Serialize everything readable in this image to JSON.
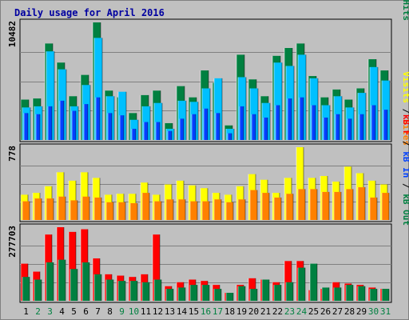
{
  "chart_data": {
    "type": "bar",
    "title": "Daily usage for April 2016",
    "colors": {
      "background": "#C0C0C0",
      "border": "#808080",
      "title": "#0000A0",
      "hits": "#008040",
      "files": "#00C0FF",
      "pages": "#0040FF",
      "visits": "#FFFF00",
      "sites": "#FF8000",
      "kb_in": "#008040",
      "kb_out": "#0040FF",
      "kb_f": "#FF0000",
      "weekday_label": "#000000",
      "weekend_label": "#008040"
    },
    "days": [
      "1",
      "2",
      "3",
      "4",
      "5",
      "6",
      "7",
      "8",
      "9",
      "10",
      "11",
      "12",
      "13",
      "14",
      "15",
      "16",
      "17",
      "18",
      "19",
      "20",
      "21",
      "22",
      "23",
      "24",
      "25",
      "26",
      "27",
      "28",
      "29",
      "30",
      "31"
    ],
    "weekend_days": [
      "2",
      "3",
      "9",
      "10",
      "16",
      "17",
      "23",
      "24",
      "30",
      "31"
    ],
    "panels": [
      {
        "id": "hits",
        "max_label": "10482",
        "ymax": 10482,
        "legend": [
          {
            "text": "Pages",
            "color": "#00C0FF"
          },
          {
            "text": " / ",
            "color": "#000000"
          },
          {
            "text": "Files",
            "color": "#0040FF"
          },
          {
            "text": " / ",
            "color": "#000000"
          },
          {
            "text": "Hits",
            "color": "#008040"
          }
        ],
        "series": [
          {
            "name": "Hits",
            "color": "#008040",
            "values": [
              3600,
              3700,
              8600,
              6900,
              3900,
              5800,
              10482,
              4400,
              3800,
              2400,
              4000,
              4400,
              1500,
              4800,
              3800,
              6200,
              5100,
              1300,
              7600,
              5400,
              3900,
              7500,
              8200,
              8600,
              5700,
              3800,
              4500,
              3600,
              4600,
              7200,
              6200
            ]
          },
          {
            "name": "Files",
            "color": "#00C0FF",
            "values": [
              2900,
              3000,
              7900,
              6300,
              3000,
              4900,
              9100,
              3900,
              4300,
              1800,
              3000,
              3300,
              1000,
              3500,
              3400,
              4600,
              5500,
              1000,
              5600,
              4600,
              3300,
              6900,
              6600,
              7600,
              5500,
              3100,
              3900,
              2900,
              4200,
              6500,
              5300
            ]
          },
          {
            "name": "Pages",
            "color": "#0040FF",
            "values": [
              2400,
              2300,
              3000,
              3500,
              2600,
              3200,
              3800,
              2400,
              2200,
              1000,
              1600,
              1600,
              800,
              1900,
              2300,
              2800,
              2400,
              600,
              3000,
              2300,
              2000,
              3100,
              3700,
              3800,
              3100,
              2000,
              2300,
              1900,
              2300,
              3100,
              2700
            ]
          }
        ]
      },
      {
        "id": "visits",
        "max_label": "778",
        "ymax": 778,
        "legend": [
          {
            "text": "Visits",
            "color": "#FFFF00"
          },
          {
            "text": " / ",
            "color": "#000000"
          },
          {
            "text": "Sites",
            "color": "#FF8000"
          }
        ],
        "series": [
          {
            "name": "Visits",
            "color": "#FFFF00",
            "values": [
              270,
              290,
              360,
              510,
              420,
              510,
              450,
              270,
              280,
              280,
              400,
              270,
              380,
              420,
              370,
              340,
              290,
              270,
              360,
              490,
              430,
              290,
              450,
              778,
              450,
              470,
              410,
              570,
              500,
              420,
              380
            ]
          },
          {
            "name": "Sites",
            "color": "#FF8000",
            "values": [
              200,
              230,
              230,
              250,
              210,
              250,
              240,
              190,
              190,
              180,
              290,
              200,
              220,
              220,
              200,
              200,
              220,
              190,
              220,
              320,
              290,
              240,
              280,
              330,
              330,
              300,
              300,
              330,
              350,
              240,
              290
            ]
          }
        ]
      },
      {
        "id": "kbytes",
        "max_label": "277703",
        "ymax": 277703,
        "legend": [
          {
            "text": "kB F",
            "color": "#FF0000"
          },
          {
            "text": " / ",
            "color": "#000000"
          },
          {
            "text": "kB In",
            "color": "#0040FF"
          },
          {
            "text": " / ",
            "color": "#000000"
          },
          {
            "text": "kB Out",
            "color": "#008040"
          }
        ],
        "series": [
          {
            "name": "kB F",
            "color": "#FF0000",
            "values": [
              140000,
              110000,
              250000,
              277703,
              260000,
              270000,
              160000,
              100000,
              95000,
              90000,
              100000,
              250000,
              55000,
              70000,
              80000,
              75000,
              60000,
              30000,
              60000,
              85000,
              80000,
              70000,
              150000,
              150000,
              40000,
              45000,
              70000,
              65000,
              60000,
              50000,
              45000
            ]
          },
          {
            "name": "kB Out",
            "color": "#008040",
            "values": [
              90000,
              80000,
              145000,
              155000,
              120000,
              145000,
              100000,
              80000,
              75000,
              75000,
              70000,
              80000,
              45000,
              50000,
              60000,
              60000,
              45000,
              30000,
              55000,
              45000,
              80000,
              60000,
              70000,
              125000,
              140000,
              50000,
              50000,
              60000,
              55000,
              45000,
              45000
            ]
          }
        ]
      }
    ]
  }
}
